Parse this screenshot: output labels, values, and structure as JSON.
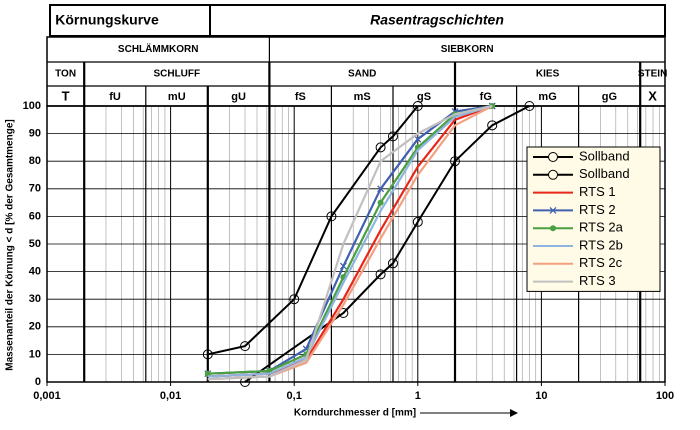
{
  "header": {
    "title": "Körnungskurve",
    "subtitle": "Rasentragschichten",
    "groups": [
      "SCHLÄMMKORN",
      "SIEBKORN"
    ],
    "fractions": [
      "TON",
      "SCHLUFF",
      "SAND",
      "KIES",
      "STEIN"
    ],
    "subfractions": [
      "T",
      "fU",
      "mU",
      "gU",
      "fS",
      "mS",
      "gS",
      "fG",
      "mG",
      "gG",
      "X"
    ]
  },
  "chart_data": {
    "type": "line",
    "log_x": true,
    "grid": true,
    "legend": "right",
    "x_label": "Korndurchmesser d [mm]",
    "y_label": "Massenanteil der Körnung < d [% der Gesamtmenge]",
    "xlim": [
      0.001,
      100
    ],
    "xticks": [
      {
        "value": 0.001,
        "label": "0,001"
      },
      {
        "value": 0.01,
        "label": "0,01"
      },
      {
        "value": 0.1,
        "label": "0,1"
      },
      1,
      10,
      100
    ],
    "ylim": [
      0,
      100
    ],
    "yticks": [
      0,
      10,
      20,
      30,
      40,
      50,
      60,
      70,
      80,
      90,
      100
    ],
    "series": [
      {
        "name": "Sollband",
        "color": "#000000",
        "marker": "circle-open",
        "x": [
          0.02,
          0.04,
          0.1,
          0.2,
          0.5,
          0.63,
          1
        ],
        "values": [
          10,
          13,
          30,
          60,
          85,
          89,
          100
        ]
      },
      {
        "name": "Sollband",
        "color": "#000000",
        "marker": "circle-open",
        "x": [
          0.04,
          0.25,
          0.5,
          0.63,
          1,
          2,
          4,
          8
        ],
        "values": [
          0,
          25,
          39,
          43,
          58,
          80,
          93,
          100
        ]
      },
      {
        "name": "RTS 1",
        "color": "#e8261a",
        "x": [
          0.02,
          0.063,
          0.125,
          0.25,
          0.5,
          1,
          2,
          4
        ],
        "values": [
          2,
          3,
          8,
          30,
          55,
          78,
          95,
          100
        ]
      },
      {
        "name": "RTS 2",
        "color": "#4060b0",
        "marker": "x",
        "x": [
          0.02,
          0.063,
          0.125,
          0.25,
          0.5,
          1,
          2,
          4
        ],
        "values": [
          3,
          4,
          12,
          42,
          70,
          88,
          98,
          100
        ]
      },
      {
        "name": "RTS 2a",
        "color": "#4aa040",
        "marker": "dot",
        "x": [
          0.02,
          0.063,
          0.125,
          0.25,
          0.5,
          1,
          2,
          4
        ],
        "values": [
          3,
          4,
          10,
          38,
          65,
          85,
          97,
          100
        ]
      },
      {
        "name": "RTS 2b",
        "color": "#8fb4e0",
        "x": [
          0.02,
          0.063,
          0.125,
          0.25,
          0.5,
          1,
          2,
          4
        ],
        "values": [
          2,
          3,
          9,
          36,
          62,
          84,
          96,
          100
        ]
      },
      {
        "name": "RTS 2c",
        "color": "#f4a080",
        "x": [
          0.02,
          0.063,
          0.125,
          0.25,
          0.5,
          1,
          2,
          4
        ],
        "values": [
          1,
          2,
          7,
          28,
          52,
          75,
          93,
          100
        ]
      },
      {
        "name": "RTS 3",
        "color": "#c0c0c0",
        "x": [
          0.02,
          0.063,
          0.125,
          0.25,
          0.5,
          1,
          2,
          4
        ],
        "values": [
          1,
          2,
          8,
          50,
          80,
          90,
          97,
          100
        ]
      }
    ]
  }
}
